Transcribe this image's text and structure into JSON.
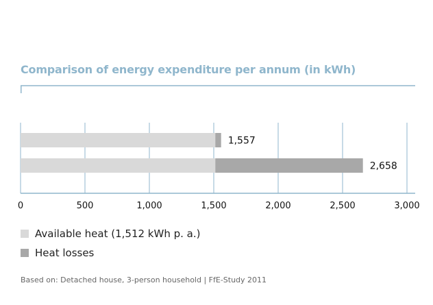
{
  "chart_data": {
    "type": "bar",
    "orientation": "horizontal",
    "stacked": true,
    "title": "Comparison of energy expenditure per annum (in kWh)",
    "xlim": [
      0,
      3000
    ],
    "x_ticks": [
      "0",
      "500",
      "1,000",
      "1,500",
      "2,000",
      "2,500",
      "3,000"
    ],
    "x_tick_values": [
      0,
      500,
      1000,
      1500,
      2000,
      2500,
      3000
    ],
    "grid": true,
    "legend_position": "bottom-left",
    "series": [
      {
        "name": "Available heat (1,512 kWh p. a.)",
        "color": "#d9d9d9",
        "values": [
          1512,
          1512
        ]
      },
      {
        "name": "Heat losses",
        "color": "#a8a8a8",
        "values": [
          45,
          1146
        ]
      }
    ],
    "totals": [
      1557,
      2658
    ],
    "total_labels": [
      "1,557",
      "2,658"
    ]
  },
  "source_note": "Based on: Detached house, 3-person household | FfE-Study 2011",
  "colors": {
    "accent": "#8fb6cc",
    "gridline": "#8fb6cc"
  }
}
